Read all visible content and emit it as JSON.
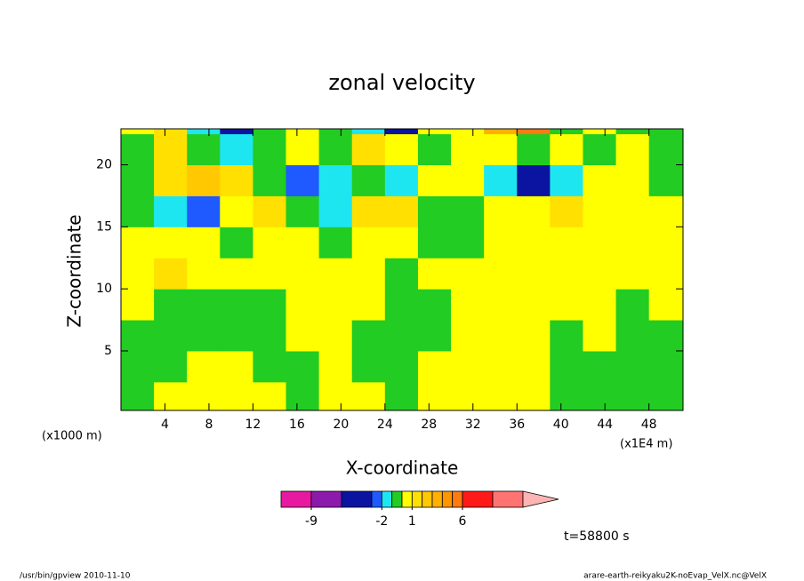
{
  "chart_data": {
    "type": "contour",
    "title": "zonal velocity",
    "x_label": "X-coordinate",
    "y_label": "Z-coordinate",
    "x_unit": "(x1E4 m)",
    "y_unit": "(x1000 m)",
    "annotation": "t=58800 s",
    "footer_left": "/usr/bin/gpview   2010-11-10",
    "footer_right": "arare-earth-reikyaku2K-noEvap_VelX.nc@VelX",
    "xlim": [
      0,
      51.1
    ],
    "ylim": [
      0.2,
      22.9
    ],
    "xticks": [
      4,
      8,
      12,
      16,
      20,
      24,
      28,
      32,
      36,
      40,
      44,
      48
    ],
    "yticks": [
      5,
      10,
      15,
      20
    ],
    "x": [
      1.5,
      4.5,
      7.5,
      10.5,
      13.5,
      16.5,
      19.5,
      22.5,
      25.5,
      28.5,
      31.5,
      34.5,
      37.5,
      40.5,
      43.5,
      46.5,
      49.5
    ],
    "y": [
      1.25,
      3.75,
      6.25,
      8.75,
      11.25,
      13.75,
      16.25,
      18.75,
      21.25,
      23.75
    ],
    "z": [
      [
        -0.5,
        0.5,
        0.5,
        0.5,
        0.5,
        -0.5,
        0.5,
        0.5,
        -0.5,
        0.5,
        0.5,
        0.5,
        0.5,
        -0.5,
        -0.5,
        -0.5,
        -0.5
      ],
      [
        -0.5,
        -0.5,
        0.5,
        0.5,
        -0.5,
        -0.5,
        0.5,
        -0.5,
        -0.5,
        0.5,
        0.5,
        0.5,
        0.5,
        -0.5,
        -0.5,
        -0.5,
        -0.5
      ],
      [
        -0.5,
        -0.5,
        -0.5,
        -0.5,
        -0.5,
        0.5,
        0.5,
        -0.5,
        -0.5,
        -0.5,
        0.5,
        0.5,
        0.5,
        -0.5,
        0.5,
        -0.5,
        -0.5
      ],
      [
        0.5,
        -0.5,
        -0.5,
        -0.5,
        -0.5,
        0.5,
        0.5,
        0.5,
        -0.5,
        -0.5,
        0.5,
        0.5,
        0.5,
        0.5,
        0.5,
        -0.5,
        0.5
      ],
      [
        0.5,
        1.5,
        0.5,
        0.5,
        0.5,
        0.5,
        0.5,
        0.5,
        -0.5,
        0.5,
        0.5,
        0.5,
        0.5,
        0.5,
        0.5,
        0.5,
        0.5
      ],
      [
        0.5,
        0.5,
        0.5,
        -0.5,
        0.5,
        0.5,
        -0.5,
        0.5,
        0.5,
        -0.5,
        -0.5,
        0.5,
        0.5,
        0.5,
        0.5,
        0.5,
        0.5
      ],
      [
        -0.5,
        -1.5,
        -2.5,
        0.5,
        1.5,
        -0.5,
        -1.5,
        1.5,
        1.5,
        -0.5,
        -0.5,
        0.5,
        0.5,
        1.5,
        0.5,
        0.5,
        0.5
      ],
      [
        -0.5,
        1.5,
        2.5,
        1.5,
        -0.5,
        -2.5,
        -1.5,
        -0.5,
        -1.5,
        0.5,
        0.5,
        -1.5,
        -4.5,
        -1.5,
        0.5,
        0.5,
        -0.5
      ],
      [
        -0.5,
        1.5,
        -0.5,
        -1.5,
        -0.5,
        0.5,
        -0.5,
        1.5,
        0.5,
        -0.5,
        0.5,
        0.5,
        -0.5,
        0.5,
        -0.5,
        0.5,
        -0.5
      ],
      [
        0.5,
        1.5,
        -1.5,
        -3.5,
        -0.5,
        0.5,
        -0.5,
        -1.5,
        -3.5,
        0.5,
        0.5,
        3.5,
        5.5,
        -0.5,
        0.5,
        -0.5,
        -0.5
      ]
    ],
    "colorbar": {
      "levels": [
        -12,
        -9,
        -6,
        -3,
        -2,
        -1,
        0,
        1,
        2,
        3,
        4,
        5,
        6,
        9,
        12
      ],
      "colors": [
        "#e619a0",
        "#8c1aac",
        "#0a14a0",
        "#1e5aff",
        "#1ee6f0",
        "#22cc22",
        "#ffff00",
        "#ffe000",
        "#ffc800",
        "#ffb000",
        "#ff9600",
        "#ff7a10",
        "#ff1a1a",
        "#ff7373"
      ],
      "over_color": "#ffb4b4",
      "ticks": [
        -9,
        -2,
        1,
        6
      ]
    }
  }
}
